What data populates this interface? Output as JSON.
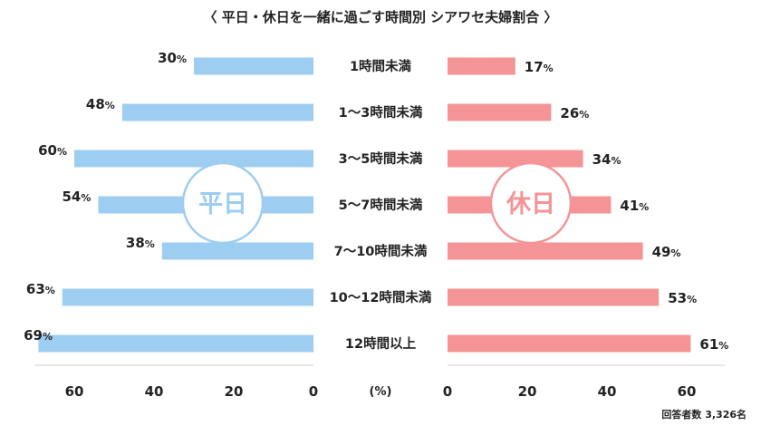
{
  "chart_data": {
    "type": "bar",
    "title": "〈 平日・休日を一緒に過ごす時間別 シアワセ夫婦割合 〉",
    "categories": [
      "1時間未満",
      "1～3時間未満",
      "3～5時間未満",
      "5～7時間未満",
      "7～10時間未満",
      "10～12時間未満",
      "12時間以上"
    ],
    "series": [
      {
        "name": "平日",
        "color": "#9ecdf2",
        "values": [
          30,
          48,
          60,
          54,
          38,
          63,
          69
        ]
      },
      {
        "name": "休日",
        "color": "#f59496",
        "values": [
          17,
          26,
          34,
          41,
          49,
          53,
          61
        ]
      }
    ],
    "value_suffix": "%",
    "unit_label": "(%)",
    "left_ticks": [
      60,
      40,
      20,
      0
    ],
    "right_ticks": [
      0,
      20,
      40,
      60
    ],
    "xlim": [
      0,
      69
    ],
    "grid": false,
    "note": "回答者数 3,326名"
  }
}
